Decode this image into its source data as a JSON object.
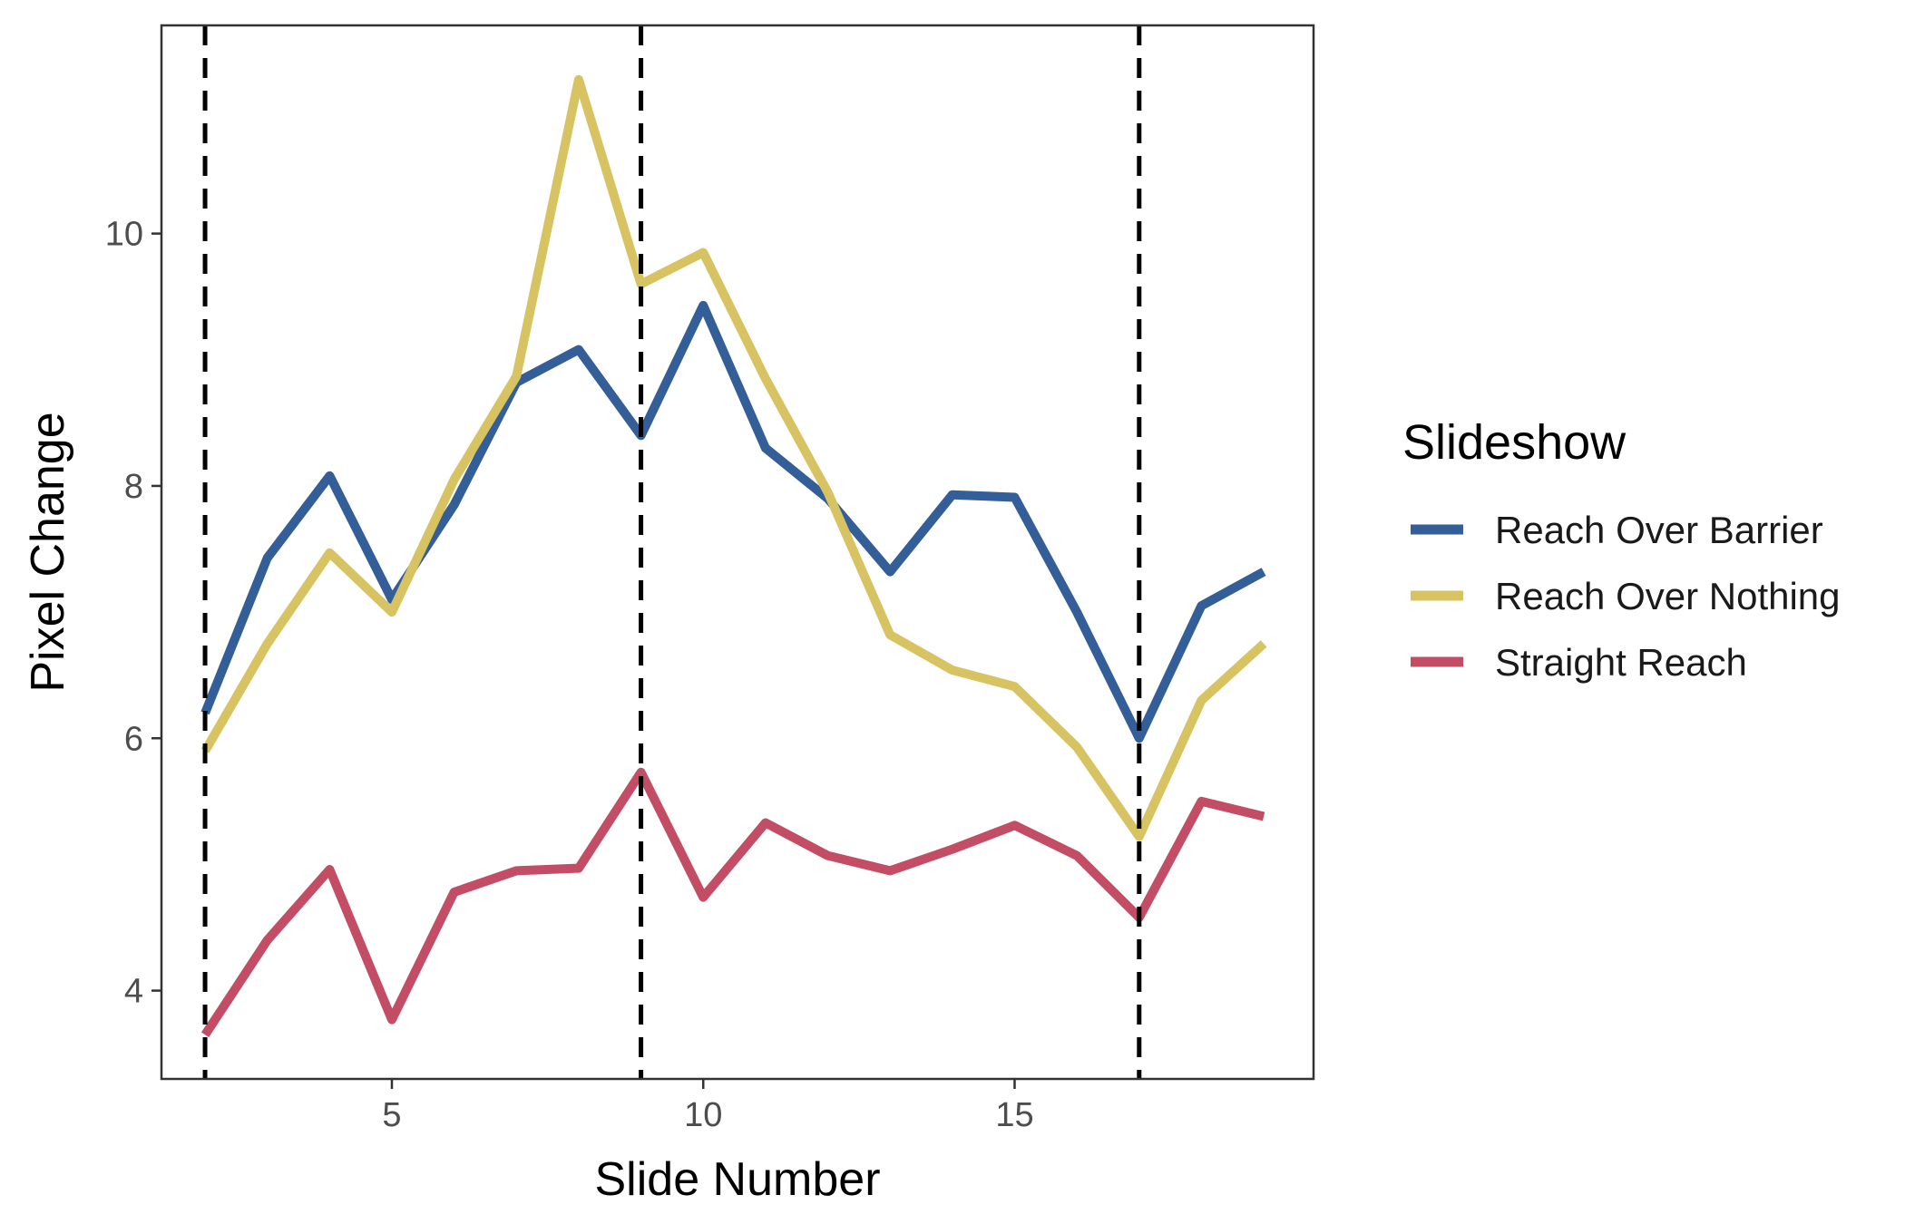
{
  "chart_data": {
    "type": "line",
    "title": "",
    "xlabel": "Slide Number",
    "ylabel": "Pixel Change",
    "xlim": [
      1.3,
      19.8
    ],
    "ylim": [
      3.3,
      11.65
    ],
    "x_ticks": [
      5,
      10,
      15
    ],
    "y_ticks": [
      4,
      6,
      8,
      10
    ],
    "grid": false,
    "legend": {
      "title": "Slideshow",
      "position": "right"
    },
    "vlines": [
      2,
      9,
      17
    ],
    "x": [
      2,
      3,
      4,
      5,
      6,
      7,
      8,
      9,
      10,
      11,
      12,
      13,
      14,
      15,
      16,
      17,
      18,
      19
    ],
    "series": [
      {
        "name": "Reach Over Barrier",
        "color": "#345e97",
        "values": [
          6.2,
          7.43,
          8.08,
          7.1,
          7.85,
          8.82,
          9.08,
          8.4,
          9.43,
          8.3,
          7.9,
          7.32,
          7.93,
          7.91,
          7.0,
          6.0,
          7.05,
          7.32
        ]
      },
      {
        "name": "Reach Over Nothing",
        "color": "#d8c362",
        "values": [
          5.9,
          6.75,
          7.47,
          7.0,
          8.05,
          8.87,
          11.22,
          9.6,
          9.85,
          8.85,
          7.95,
          6.82,
          6.54,
          6.41,
          5.93,
          5.22,
          6.3,
          6.75
        ]
      },
      {
        "name": "Straight Reach",
        "color": "#c24d64",
        "values": [
          3.65,
          4.4,
          4.96,
          3.77,
          4.78,
          4.95,
          4.97,
          5.73,
          4.74,
          5.33,
          5.07,
          4.95,
          5.12,
          5.31,
          5.07,
          4.58,
          5.5,
          5.38
        ]
      }
    ]
  }
}
